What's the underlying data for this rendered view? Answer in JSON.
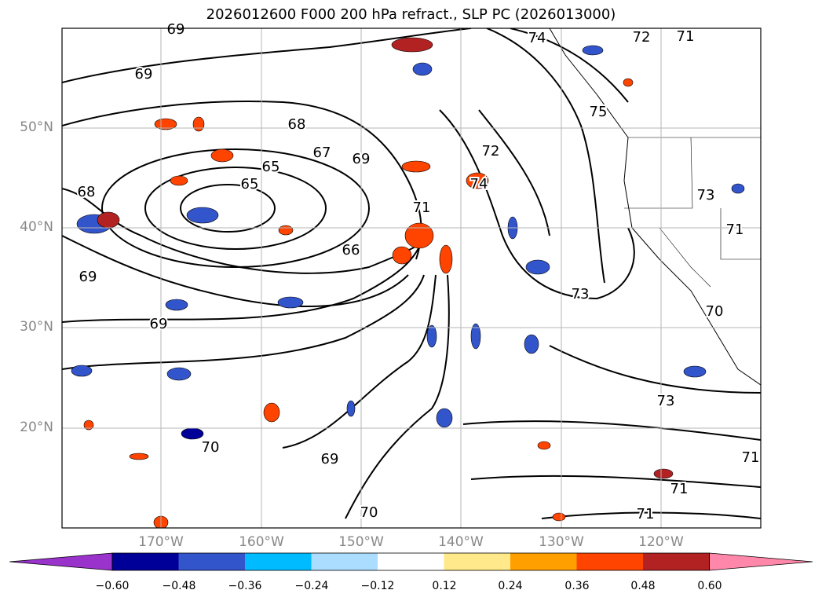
{
  "title": "2026012600 F000 200 hPa refract., SLP PC (2026013000)",
  "latitudes": [
    {
      "label": "50°N",
      "lat": 50
    },
    {
      "label": "40°N",
      "lat": 40
    },
    {
      "label": "30°N",
      "lat": 30
    },
    {
      "label": "20°N",
      "lat": 20
    }
  ],
  "longitudes": [
    {
      "label": "170°W",
      "lon": -170
    },
    {
      "label": "160°W",
      "lon": -160
    },
    {
      "label": "150°W",
      "lon": -150
    },
    {
      "label": "140°W",
      "lon": -140
    },
    {
      "label": "130°W",
      "lon": -130
    },
    {
      "label": "120°W",
      "lon": -120
    }
  ],
  "colorbar": {
    "colors": [
      "#9933cc",
      "#000099",
      "#3355cc",
      "#00bbff",
      "#aaddff",
      "#ffffff",
      "#ffe98a",
      "#ffa000",
      "#ff4400",
      "#b22222",
      "#ff88aa"
    ],
    "ticks": [
      "−0.60",
      "−0.48",
      "−0.36",
      "−0.24",
      "−0.12",
      "0.12",
      "0.24",
      "0.36",
      "0.48",
      "0.60"
    ]
  },
  "contour_labels": [
    "69",
    "69",
    "68",
    "67",
    "65",
    "65",
    "69",
    "68",
    "66",
    "72",
    "74",
    "74",
    "72",
    "71",
    "75",
    "73",
    "71",
    "69",
    "69",
    "73",
    "70",
    "69",
    "70",
    "73",
    "71",
    "71",
    "71",
    "70",
    "71"
  ]
}
